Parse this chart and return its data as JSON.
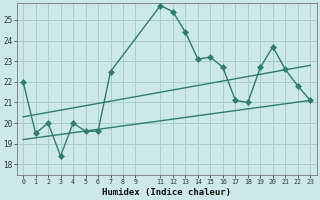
{
  "title": "",
  "xlabel": "Humidex (Indice chaleur)",
  "background_color": "#cce8e8",
  "grid_color": "#aacccc",
  "line_color": "#2e7d6e",
  "xlim": [
    -0.5,
    23.5
  ],
  "ylim": [
    17.5,
    25.8
  ],
  "yticks": [
    18,
    19,
    20,
    21,
    22,
    23,
    24,
    25
  ],
  "xtick_values": [
    0,
    1,
    2,
    3,
    4,
    5,
    6,
    7,
    8,
    9,
    11,
    12,
    13,
    14,
    15,
    16,
    17,
    18,
    19,
    20,
    21,
    22,
    23
  ],
  "xtick_labels": [
    "0",
    "1",
    "2",
    "3",
    "4",
    "5",
    "6",
    "7",
    "8",
    "9",
    "11",
    "12",
    "13",
    "14",
    "15",
    "16",
    "17",
    "18",
    "19",
    "20",
    "21",
    "22",
    "23"
  ],
  "series1_x": [
    0,
    1,
    2,
    3,
    4,
    5,
    6,
    7,
    11,
    12,
    13,
    14,
    15,
    16,
    17,
    18,
    19,
    20,
    21,
    22,
    23
  ],
  "series1_y": [
    22.0,
    19.5,
    20.0,
    18.4,
    20.0,
    19.6,
    19.6,
    22.5,
    25.7,
    25.4,
    24.4,
    23.1,
    23.2,
    22.7,
    21.1,
    21.0,
    22.7,
    23.7,
    22.6,
    21.8,
    21.1
  ],
  "series2_x": [
    0,
    23
  ],
  "series2_y": [
    19.2,
    21.1
  ],
  "series3_x": [
    0,
    23
  ],
  "series3_y": [
    20.3,
    22.8
  ],
  "marker_size": 3.0,
  "line_width": 1.0
}
